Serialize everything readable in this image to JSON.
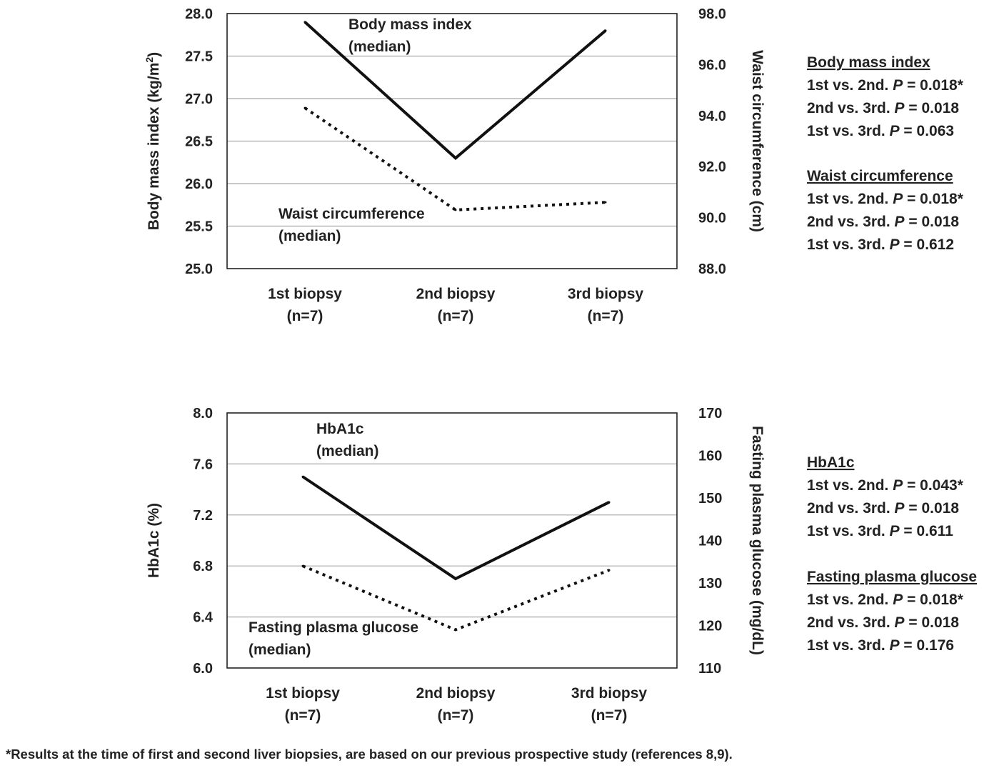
{
  "chart_data": [
    {
      "type": "line",
      "categories": [
        "1st biopsy",
        "2nd biopsy",
        "3rd biopsy"
      ],
      "category_sublabels": [
        "(n=7)",
        "(n=7)",
        "(n=7)"
      ],
      "ylabel": "Body mass index (kg/m²)",
      "ylabel_main": "Body mass index (kg/m",
      "ylabel_sup": "2",
      "ylabel_end": ")",
      "ylim": [
        25.0,
        28.0
      ],
      "yticks": [
        "25.0",
        "25.5",
        "26.0",
        "26.5",
        "27.0",
        "27.5",
        "28.0"
      ],
      "y2label": "Waist circumference (cm)",
      "y2lim": [
        88.0,
        98.0
      ],
      "y2ticks": [
        "88.0",
        "90.0",
        "92.0",
        "94.0",
        "96.0",
        "98.0"
      ],
      "grid": true,
      "series": [
        {
          "name": "Body mass index",
          "name_line2": "(median)",
          "axis": "left",
          "style": "solid",
          "values": [
            27.9,
            26.3,
            27.8
          ]
        },
        {
          "name": "Waist circumference",
          "name_line2": "(median)",
          "axis": "right",
          "style": "dotted",
          "values": [
            94.3,
            90.3,
            90.6
          ]
        }
      ],
      "stats": [
        {
          "title": "Body mass index",
          "lines": [
            {
              "text": "1st vs. 2nd. ",
              "p": "P",
              "value": " = 0.018*"
            },
            {
              "text": "2nd vs. 3rd. ",
              "p": "P",
              "value": " = 0.018"
            },
            {
              "text": "1st vs. 3rd. ",
              "p": "P",
              "value": " = 0.063"
            }
          ]
        },
        {
          "title": "Waist circumference",
          "lines": [
            {
              "text": "1st vs. 2nd. ",
              "p": "P",
              "value": " = 0.018*"
            },
            {
              "text": "2nd vs. 3rd. ",
              "p": "P",
              "value": " = 0.018"
            },
            {
              "text": "1st vs. 3rd. ",
              "p": "P",
              "value": " = 0.612"
            }
          ]
        }
      ]
    },
    {
      "type": "line",
      "categories": [
        "1st biopsy",
        "2nd biopsy",
        "3rd biopsy"
      ],
      "category_sublabels": [
        "(n=7)",
        "(n=7)",
        "(n=7)"
      ],
      "ylabel": "HbA1c (%)",
      "ylim": [
        6.0,
        8.0
      ],
      "yticks": [
        "6.0",
        "6.4",
        "6.8",
        "7.2",
        "7.6",
        "8.0"
      ],
      "y2label": "Fasting plasma glucose (mg/dL)",
      "y2lim": [
        110,
        170
      ],
      "y2ticks": [
        "110",
        "120",
        "130",
        "140",
        "150",
        "160",
        "170"
      ],
      "grid": true,
      "series": [
        {
          "name": "HbA1c",
          "name_line2": "(median)",
          "axis": "left",
          "style": "solid",
          "values": [
            7.5,
            6.7,
            7.3
          ]
        },
        {
          "name": "Fasting plasma glucose",
          "name_line2": "(median)",
          "axis": "right",
          "style": "dotted",
          "values": [
            134,
            119,
            133
          ]
        }
      ],
      "stats": [
        {
          "title": "HbA1c",
          "lines": [
            {
              "text": "1st vs. 2nd. ",
              "p": "P",
              "value": " = 0.043*"
            },
            {
              "text": "2nd vs. 3rd. ",
              "p": "P",
              "value": " = 0.018"
            },
            {
              "text": "1st vs. 3rd. ",
              "p": "P",
              "value": " = 0.611"
            }
          ]
        },
        {
          "title": "Fasting plasma glucose",
          "lines": [
            {
              "text": "1st vs. 2nd. ",
              "p": "P",
              "value": " = 0.018*"
            },
            {
              "text": "2nd vs. 3rd. ",
              "p": "P",
              "value": " = 0.018"
            },
            {
              "text": "1st vs. 3rd. ",
              "p": "P",
              "value": " = 0.176"
            }
          ]
        }
      ]
    }
  ],
  "footnote": "*Results at the time of first and second liver biopsies, are based on our previous prospective study (references 8,9)."
}
